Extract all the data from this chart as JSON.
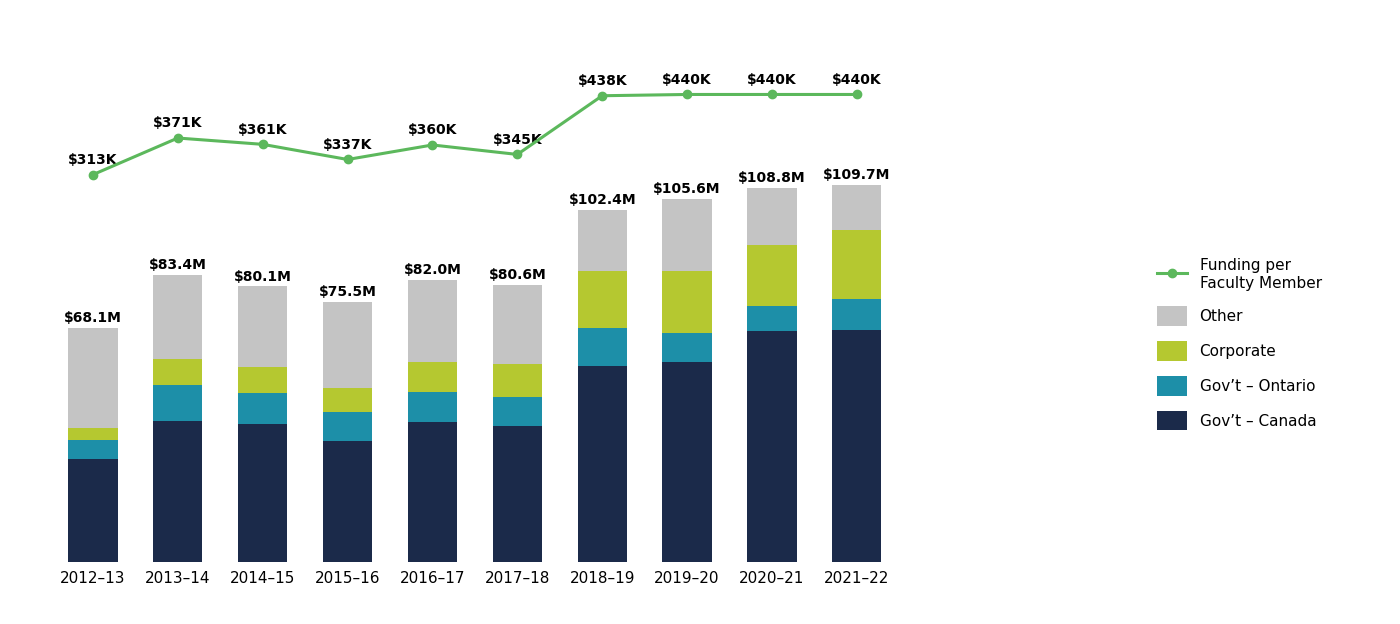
{
  "years": [
    "2012–13",
    "2013–14",
    "2014–15",
    "2015–16",
    "2016–17",
    "2017–18",
    "2018–19",
    "2019–20",
    "2020–21",
    "2021–22"
  ],
  "totals_label": [
    "$68.1M",
    "$83.4M",
    "$80.1M",
    "$75.5M",
    "$82.0M",
    "$80.6M",
    "$102.4M",
    "$105.6M",
    "$108.8M",
    "$109.7M"
  ],
  "canada": [
    30.0,
    41.0,
    40.0,
    35.0,
    40.5,
    39.5,
    57.0,
    58.0,
    67.0,
    67.5
  ],
  "ontario": [
    5.5,
    10.5,
    9.0,
    8.5,
    9.0,
    8.5,
    11.0,
    8.5,
    7.5,
    9.0
  ],
  "corporate": [
    3.5,
    7.5,
    7.5,
    7.0,
    8.5,
    9.5,
    16.5,
    18.0,
    17.5,
    20.0
  ],
  "other": [
    29.1,
    24.4,
    23.6,
    25.0,
    24.0,
    23.1,
    17.9,
    21.1,
    16.8,
    13.2
  ],
  "funding_per_member": [
    313,
    371,
    361,
    337,
    360,
    345,
    438,
    440,
    440,
    440
  ],
  "funding_labels": [
    "$313K",
    "$371K",
    "$361K",
    "$337K",
    "$360K",
    "$345K",
    "$438K",
    "$440K",
    "$440K",
    "$440K"
  ],
  "color_canada": "#1b2a4a",
  "color_ontario": "#1d8fa8",
  "color_corporate": "#b5c830",
  "color_other": "#c4c4c4",
  "color_line": "#5cb85c",
  "background_color": "#ffffff"
}
